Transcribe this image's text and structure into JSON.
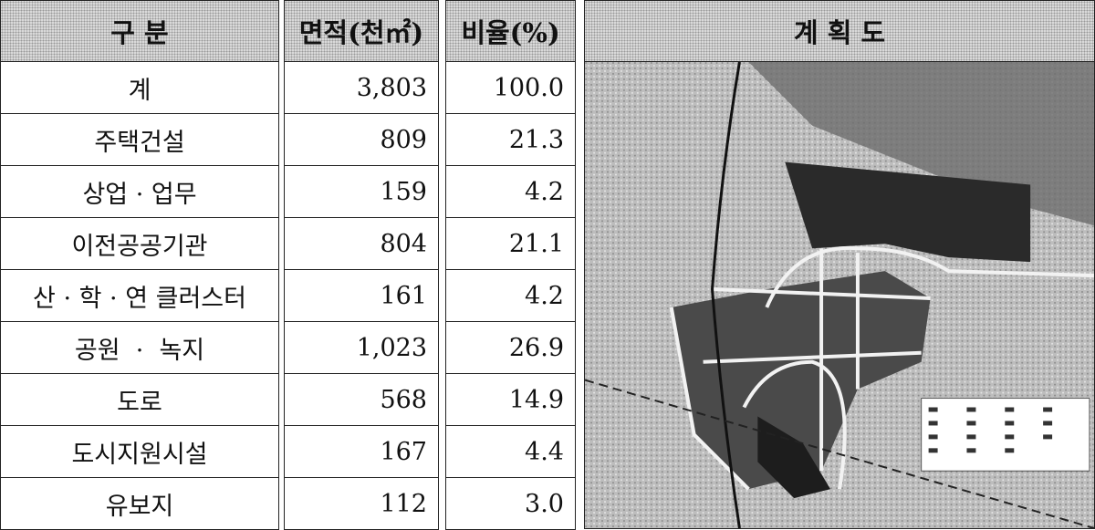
{
  "table": {
    "header": [
      "구 분",
      "면적(천㎡)",
      "비율(%)"
    ],
    "rows": [
      [
        "계",
        "3,803",
        "100.0"
      ],
      [
        "주택건설",
        "809",
        "21.3"
      ],
      [
        "상업 · 업무",
        "159",
        "4.2"
      ],
      [
        "이전공공기관",
        "804",
        "21.1"
      ],
      [
        "산 · 학 · 연 클러스터",
        "161",
        "4.2"
      ],
      [
        "공원  ·  녹지",
        "1,023",
        "26.9"
      ],
      [
        "도로",
        "568",
        "14.9"
      ],
      [
        "도시지원시설",
        "167",
        "4.4"
      ],
      [
        "유보지",
        "112",
        "3.0"
      ]
    ]
  },
  "map": {
    "title": "계 획 도"
  }
}
